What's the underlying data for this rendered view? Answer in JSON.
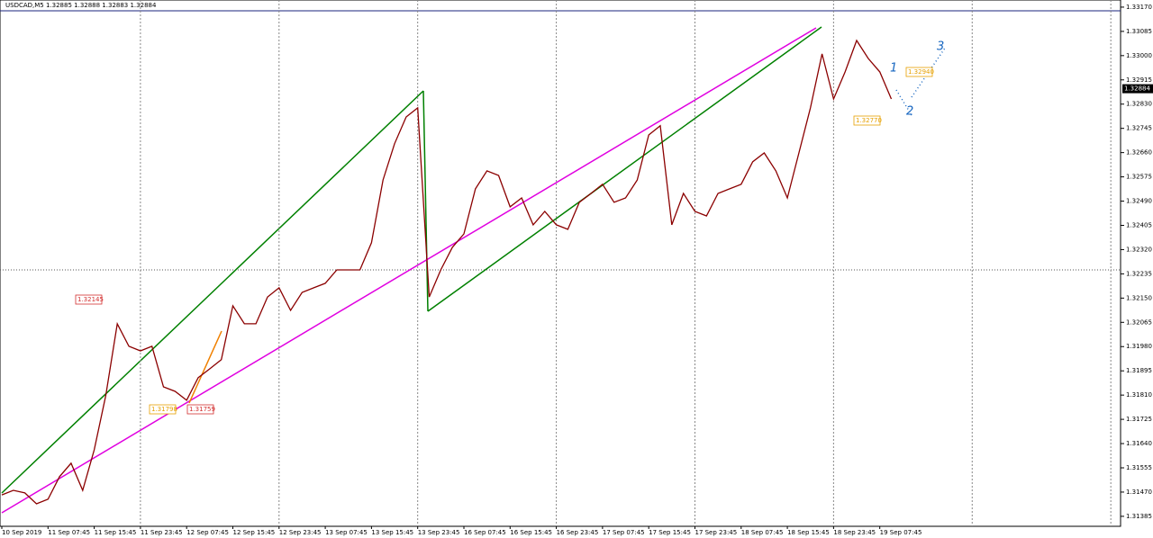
{
  "chart_data": {
    "type": "line",
    "title": "USDCAD,M5  1.32885 1.32888 1.32883 1.32884",
    "categories": [
      "10 Sep 2019",
      null,
      null,
      null,
      "11 Sep 07:45",
      null,
      null,
      null,
      "11 Sep 15:45",
      null,
      null,
      null,
      "11 Sep 23:45",
      null,
      null,
      null,
      "12 Sep 07:45",
      null,
      null,
      null,
      "12 Sep 15:45",
      null,
      null,
      null,
      "12 Sep 23:45",
      null,
      null,
      null,
      "13 Sep 07:45",
      null,
      null,
      null,
      "13 Sep 15:45",
      null,
      null,
      null,
      "13 Sep 23:45",
      null,
      null,
      null,
      "16 Sep 07:45",
      null,
      null,
      null,
      "16 Sep 15:45",
      null,
      null,
      null,
      "16 Sep 23:45",
      null,
      null,
      null,
      "17 Sep 07:45",
      null,
      null,
      null,
      "17 Sep 15:45",
      null,
      null,
      null,
      "17 Sep 23:45",
      null,
      null,
      null,
      "18 Sep 07:45",
      null,
      null,
      null,
      "18 Sep 15:45",
      null,
      null,
      null,
      "18 Sep 23:45",
      null,
      null,
      null,
      "19 Sep 07:45",
      null,
      null,
      null,
      null,
      null,
      null,
      null,
      null,
      null,
      null,
      null,
      null,
      null,
      null,
      null,
      null,
      null,
      null,
      null,
      null
    ],
    "series": [
      {
        "name": "USDCAD,M5",
        "color": "#8b0000",
        "values": [
          1.3146,
          1.31476,
          1.31467,
          1.31429,
          1.31445,
          1.31524,
          1.31571,
          1.31476,
          1.31618,
          1.31808,
          1.3206,
          1.31981,
          1.31965,
          1.31981,
          1.31839,
          1.31823,
          1.31792,
          1.31871,
          1.31902,
          1.31934,
          1.32123,
          1.3206,
          1.3206,
          1.32154,
          1.32186,
          1.32107,
          1.3217,
          1.32186,
          1.32202,
          1.32249,
          1.32249,
          1.32249,
          1.32344,
          1.32564,
          1.32691,
          1.32785,
          1.32817,
          1.32154,
          1.32249,
          1.32328,
          1.32375,
          1.32533,
          1.32596,
          1.3258,
          1.3247,
          1.32501,
          1.32407,
          1.32454,
          1.32407,
          1.32391,
          1.32486,
          1.32517,
          1.32549,
          1.32486,
          1.32501,
          1.32564,
          1.32722,
          1.32754,
          1.32407,
          1.32517,
          1.32454,
          1.32438,
          1.32517,
          1.32533,
          1.32549,
          1.32628,
          1.32659,
          1.32596,
          1.32501,
          1.32659,
          1.32817,
          1.33006,
          1.32848,
          1.32943,
          1.33053,
          1.3299,
          1.32943,
          1.32848,
          null,
          null,
          null,
          null,
          null,
          null,
          null,
          null,
          null,
          null,
          null,
          null,
          null,
          null,
          null,
          null,
          null,
          null,
          null
        ]
      }
    ],
    "ylim": [
      1.3135,
      1.33195
    ],
    "yticks": [
      {
        "value": 1.31385,
        "label": "1.31385"
      },
      {
        "value": 1.3147,
        "label": "1.31470"
      },
      {
        "value": 1.31555,
        "label": "1.31555"
      },
      {
        "value": 1.3164,
        "label": "1.31640"
      },
      {
        "value": 1.31725,
        "label": "1.31725"
      },
      {
        "value": 1.3181,
        "label": "1.31810"
      },
      {
        "value": 1.31895,
        "label": "1.31895"
      },
      {
        "value": 1.3198,
        "label": "1.31980"
      },
      {
        "value": 1.32065,
        "label": "1.32065"
      },
      {
        "value": 1.3215,
        "label": "1.32150"
      },
      {
        "value": 1.32235,
        "label": "1.32235"
      },
      {
        "value": 1.3232,
        "label": "1.32320"
      },
      {
        "value": 1.32405,
        "label": "1.32405"
      },
      {
        "value": 1.3249,
        "label": "1.32490"
      },
      {
        "value": 1.32575,
        "label": "1.32575"
      },
      {
        "value": 1.3266,
        "label": "1.32660"
      },
      {
        "value": 1.32745,
        "label": "1.32745"
      },
      {
        "value": 1.3283,
        "label": "1.32830"
      },
      {
        "value": 1.32915,
        "label": "1.32915"
      },
      {
        "value": 1.33,
        "label": "1.33000"
      },
      {
        "value": 1.33085,
        "label": "1.33085"
      },
      {
        "value": 1.3317,
        "label": "1.33170"
      }
    ],
    "last_price": 1.32884,
    "annotations": [
      "1.32145",
      "1.31798",
      "1.31759",
      "1.32940",
      "1.32770",
      "1",
      "2",
      "3"
    ],
    "grid": true
  }
}
